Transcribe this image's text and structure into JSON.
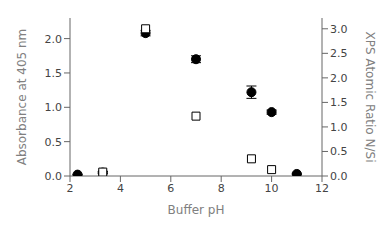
{
  "chart_data": {
    "type": "scatter",
    "xlabel": "Buffer pH",
    "ylabel": "Absorbance at 405 nm",
    "y2label": "XPS Atomic Ratio N/Si",
    "xlim": [
      2,
      12
    ],
    "xticks": [
      2,
      4,
      6,
      8,
      10,
      12
    ],
    "ylim": [
      0,
      2.3
    ],
    "yticks": [
      {
        "value": 0,
        "label": "0.0"
      },
      0.5,
      {
        "value": 1.0,
        "label": "1.0"
      },
      1.5,
      {
        "value": 2.0,
        "label": "2.0"
      }
    ],
    "y2lim": [
      0,
      3.22
    ],
    "y2ticks": [
      {
        "value": 0,
        "label": "0.0"
      },
      0.5,
      {
        "value": 1.0,
        "label": "1.0"
      },
      1.5,
      {
        "value": 2.0,
        "label": "2.0"
      },
      2.5,
      {
        "value": 3.0,
        "label": "3.0"
      }
    ],
    "grid": false,
    "series": [
      {
        "x": [
          2.3,
          3.3,
          5.0,
          7.0,
          9.2,
          10.0,
          11.0
        ],
        "values": [
          0.02,
          0.05,
          2.08,
          1.7,
          1.22,
          0.93,
          0.03
        ],
        "error": [
          0.005,
          0.015,
          0.04,
          0.05,
          0.09,
          0.03,
          0.01
        ],
        "color": "#000000",
        "marker": "circle"
      },
      {
        "x": [
          3.3,
          5.0,
          7.0,
          9.2,
          10.0
        ],
        "values": [
          0.08,
          3.0,
          1.22,
          0.35,
          0.13
        ],
        "color": "#000000",
        "marker": "square_open",
        "axis": "y2"
      }
    ]
  }
}
